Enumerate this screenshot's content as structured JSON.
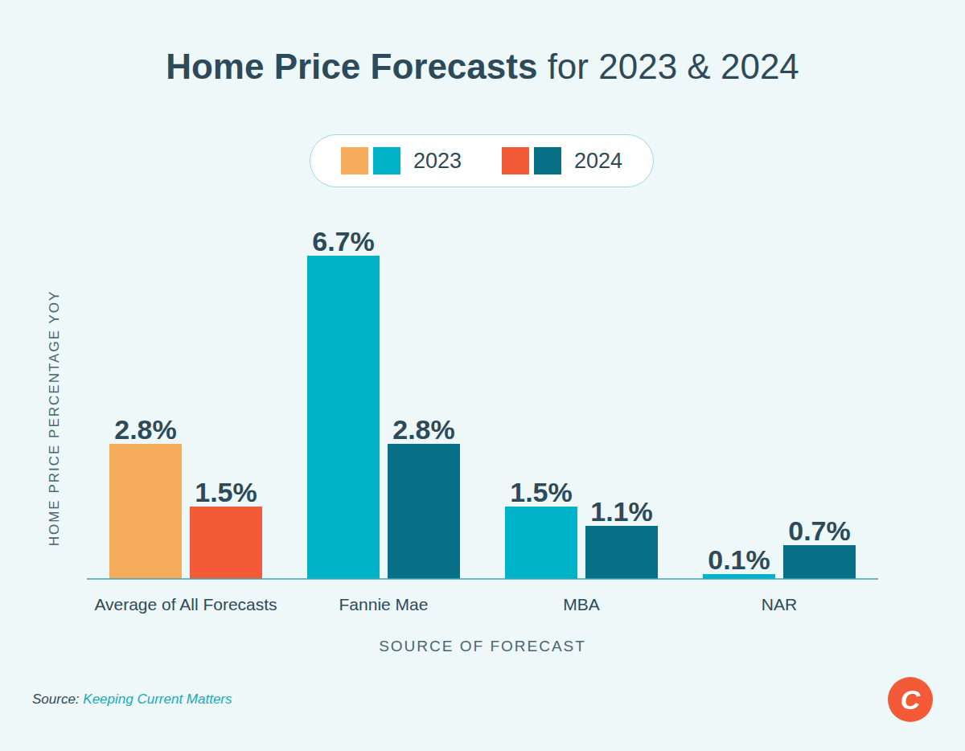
{
  "chart_data": {
    "type": "bar",
    "title": "Home Price Forecasts for 2023 & 2024",
    "categories": [
      "Average of All Forecasts",
      "Fannie Mae",
      "MBA",
      "NAR"
    ],
    "series": [
      {
        "name": "2023",
        "colors": [
          "#f5ad5c",
          "#00b3c8",
          "#00b3c8",
          "#00b3c8"
        ],
        "values": [
          2.8,
          6.7,
          1.5,
          0.1
        ],
        "value_labels": [
          "2.8%",
          "6.7%",
          "1.5%",
          "0.1%"
        ]
      },
      {
        "name": "2024",
        "colors": [
          "#f25a38",
          "#076f86",
          "#076f86",
          "#076f86"
        ],
        "values": [
          1.5,
          2.8,
          1.1,
          0.7
        ],
        "value_labels": [
          "1.5%",
          "2.8%",
          "1.1%",
          "0.7%"
        ]
      }
    ],
    "ylim": [
      0,
      7
    ],
    "yticks": [
      0,
      7
    ],
    "tick_labels": "x",
    "grid": false,
    "data_labels": true,
    "legend": "top",
    "x_label": "SOURCE OF FORECAST",
    "y_label": "HOME PRICE PERCENTAGE YOY",
    "source": "Source: Keeping Current Matters",
    "logo": "C"
  }
}
